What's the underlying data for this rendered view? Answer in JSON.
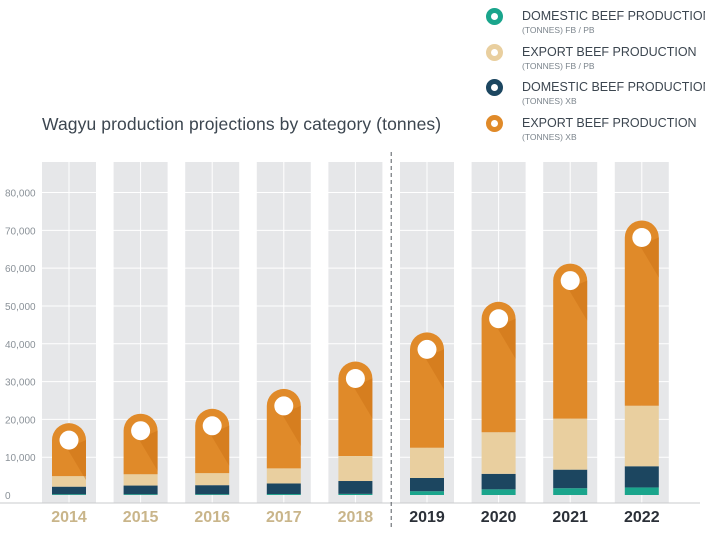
{
  "chart_data": {
    "type": "bar",
    "stacked": true,
    "title": "Wagyu production projections by category (tonnes)",
    "categories": [
      "2014",
      "2015",
      "2016",
      "2017",
      "2018",
      "2019",
      "2020",
      "2021",
      "2022"
    ],
    "projection_starts_at": "2019",
    "ylim": [
      0,
      80000
    ],
    "yticks": [
      "0",
      "10,000",
      "20,000",
      "30,000",
      "40,000",
      "50,000",
      "60,000",
      "70,000",
      "80,000"
    ],
    "ytick_values": [
      0,
      10000,
      20000,
      30000,
      40000,
      50000,
      60000,
      70000,
      80000
    ],
    "grid": true,
    "legend_position": "top-right",
    "series": [
      {
        "name": "DOMESTIC BEEF PRODUCTION",
        "unit": "(TONNES) FB / PB",
        "color": "#1aa58c",
        "values": [
          200,
          200,
          200,
          250,
          300,
          1000,
          1500,
          1800,
          2000
        ]
      },
      {
        "name": "DOMESTIC BEEF PRODUCTION",
        "unit": "(TONNES) XB",
        "color": "#1c4660",
        "values": [
          2000,
          2300,
          2400,
          2800,
          3400,
          3500,
          4100,
          4900,
          5600
        ]
      },
      {
        "name": "EXPORT BEEF PRODUCTION",
        "unit": "(TONNES) FB / PB",
        "color": "#e9cf9f",
        "values": [
          2800,
          3000,
          3200,
          4000,
          6600,
          8000,
          11000,
          13500,
          16000
        ]
      },
      {
        "name": "EXPORT BEEF PRODUCTION",
        "unit": "(TONNES) XB",
        "color": "#e08a29",
        "values": [
          14000,
          16000,
          17000,
          21000,
          25000,
          30500,
          34500,
          41000,
          49000
        ]
      }
    ]
  },
  "legend": [
    {
      "label": "DOMESTIC BEEF PRODUCTION",
      "sub": "(TONNES) FB / PB",
      "color": "#1aa58c"
    },
    {
      "label": "EXPORT BEEF PRODUCTION",
      "sub": "(TONNES) FB / PB",
      "color": "#e9cf9f"
    },
    {
      "label": "DOMESTIC BEEF PRODUCTION",
      "sub": "(TONNES) XB",
      "color": "#1c4660"
    },
    {
      "label": "EXPORT BEEF PRODUCTION",
      "sub": "(TONNES) XB",
      "color": "#e08a29"
    }
  ],
  "colors": {
    "column_bg": "#e6e7e9",
    "grid": "#ffffff",
    "historic_year_label": "#c9b58a",
    "projected_year_label": "#2b3038",
    "tick_label": "#8a9198",
    "divider": "#555a60"
  }
}
